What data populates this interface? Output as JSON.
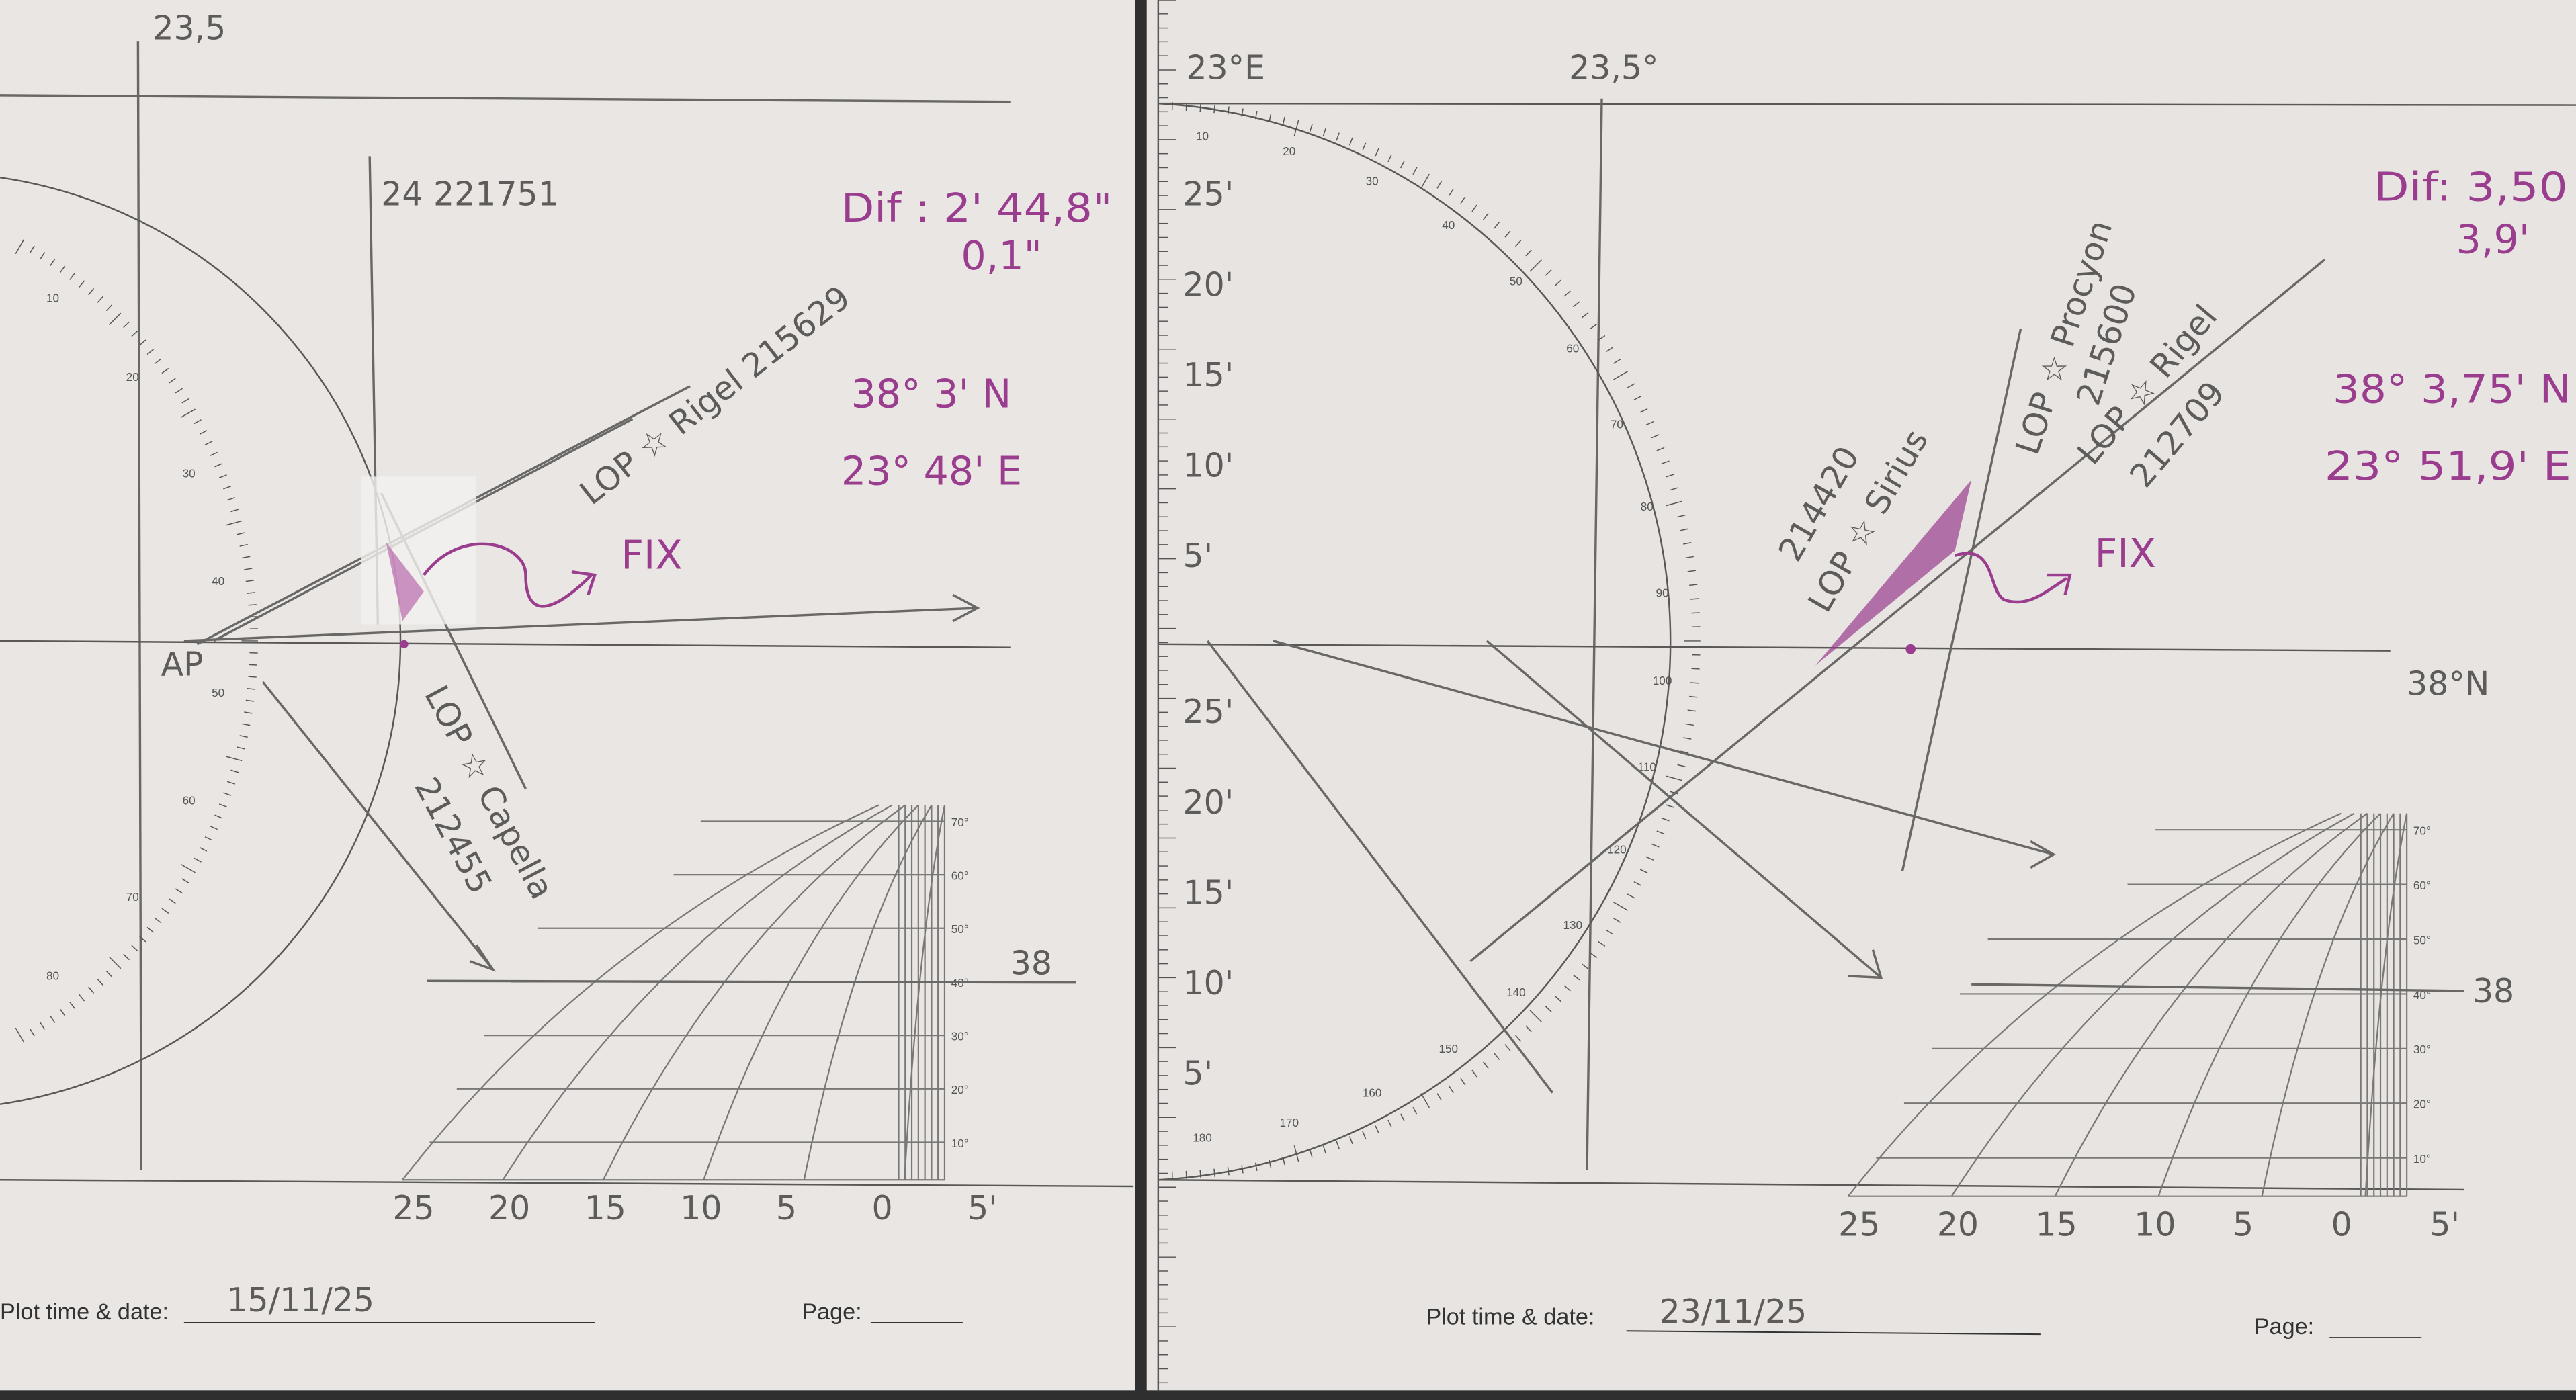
{
  "colors": {
    "paper": "#e9e6e3",
    "pencil": "#6a6866",
    "ink": "#9a3d8e",
    "background": "#2f2f2f"
  },
  "left_sheet": {
    "meridian_label": "23,5",
    "time_label": "24 221751",
    "dif_line1": "Dif : 2' 44,8\"",
    "dif_line2": "0,1\"",
    "fix_lat": "38° 3' N",
    "fix_lon": "23° 48' E",
    "fix_label": "FIX",
    "ap_label": "AP",
    "lop_rigel": "LOP ☆ Rigel 215629",
    "lop_capella_1": "LOP ☆ Capella",
    "lop_capella_2": "212455",
    "parallel_label": "38",
    "plot_time_label": "Plot time & date:",
    "plot_time_value": "15/11/25",
    "page_label": "Page:"
  },
  "right_sheet": {
    "meridian_label_1": "23°E",
    "meridian_label_2": "23,5°",
    "dif_line1": "Dif: 3,50",
    "dif_line2": "3,9'",
    "fix_lat": "38° 3,75' N",
    "fix_lon": "23° 51,9' E",
    "fix_label": "FIX",
    "lop_procyon_1": "LOP ☆ Procyon",
    "lop_procyon_2": "215600",
    "lop_rigel_1": "LOP ☆ Rigel",
    "lop_rigel_2": "212709",
    "lop_sirius_1": "214420",
    "lop_sirius_2": "LOP ☆ Sirius",
    "parallel_label": "38°N",
    "grid_parallel_label": "38",
    "ruler_marks": [
      "25'",
      "20'",
      "15'",
      "10'",
      "5'",
      "25'",
      "20'",
      "15'",
      "10'",
      "5'"
    ],
    "plot_time_label": "Plot time & date:",
    "plot_time_value": "23/11/25",
    "page_label": "Page:"
  },
  "scale": {
    "lat_ticks": [
      "70°",
      "60°",
      "50°",
      "40°",
      "30°",
      "20°",
      "10°"
    ],
    "minute_labels": [
      "25",
      "20",
      "15",
      "10",
      "5",
      "0",
      "5'"
    ]
  },
  "protractor_labels": [
    "10",
    "20",
    "30",
    "40",
    "50",
    "60",
    "70",
    "80",
    "90",
    "100",
    "110",
    "120",
    "130",
    "140",
    "150",
    "160",
    "170",
    "180"
  ]
}
